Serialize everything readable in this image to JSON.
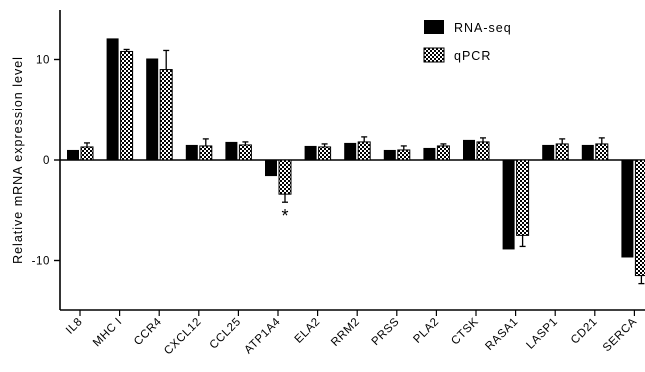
{
  "chart_data": {
    "type": "bar",
    "title": "",
    "xlabel": "",
    "ylabel": "Relative mRNA expression level",
    "ylim": [
      -15,
      15
    ],
    "yticks": [
      -10,
      0,
      10
    ],
    "grid": false,
    "legend_position": "top-right",
    "categories": [
      "IL8",
      "MHC I",
      "CCR4",
      "CXCL12",
      "CCL25",
      "ATP1A4",
      "ELA2",
      "RRM2",
      "PRSS",
      "PLA2",
      "CTSK",
      "RASA1",
      "LASP1",
      "CD21",
      "SERCA"
    ],
    "series": [
      {
        "name": "RNA-seq",
        "color": "#000000",
        "pattern": "solid",
        "values": [
          1.0,
          12.1,
          10.1,
          1.5,
          1.8,
          -1.6,
          1.4,
          1.7,
          1.0,
          1.2,
          2.0,
          -8.9,
          1.5,
          1.5,
          -9.7
        ]
      },
      {
        "name": "qPCR",
        "color": "#000000",
        "pattern": "checker",
        "values": [
          1.3,
          10.8,
          9.0,
          1.4,
          1.5,
          -3.4,
          1.3,
          1.8,
          1.0,
          1.4,
          1.8,
          -7.5,
          1.6,
          1.6,
          -11.5
        ],
        "errors": [
          0.4,
          0.2,
          1.9,
          0.7,
          0.3,
          0.8,
          0.3,
          0.5,
          0.4,
          0.2,
          0.4,
          1.1,
          0.5,
          0.6,
          0.8
        ]
      }
    ],
    "annotations": [
      {
        "category": "ATP1A4",
        "series": "qPCR",
        "text": "*"
      }
    ]
  }
}
